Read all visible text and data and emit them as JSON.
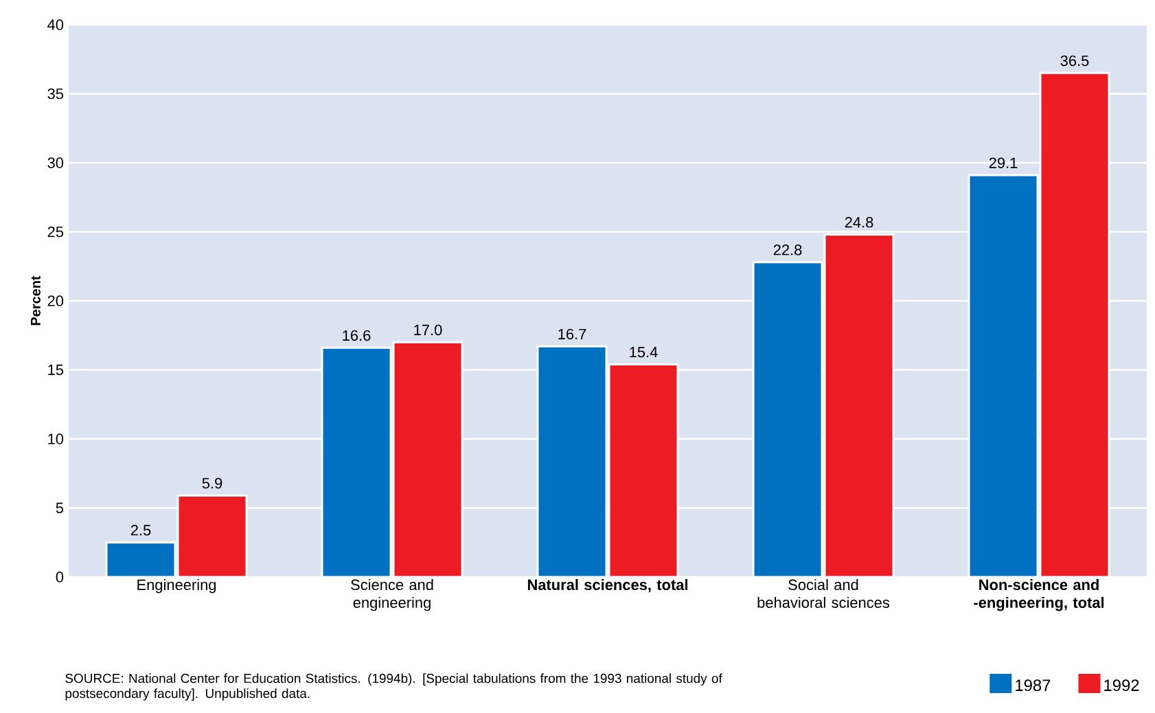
{
  "chart_data": {
    "type": "bar",
    "ylabel": "Percent",
    "categories": [
      "Engineering",
      "Science and engineering",
      "**Natural sciences, total**",
      "Social and behavioral sciences",
      "**Non-science and -engineering, total**"
    ],
    "series": [
      {
        "name": "1987",
        "color": "#0070c0",
        "values": [
          2.5,
          16.6,
          16.7,
          22.8,
          29.1
        ],
        "value_labels": [
          "2.5",
          "16.6",
          "16.7",
          "22.8",
          "29.1"
        ]
      },
      {
        "name": "1992",
        "color": "#ed1c24",
        "values": [
          5.9,
          17.0,
          15.4,
          24.8,
          36.5
        ],
        "value_labels": [
          "5.9",
          "17.0",
          "15.4",
          "24.8",
          "36.5"
        ]
      }
    ],
    "ylim": [
      0,
      40
    ],
    "yticks": [
      0,
      5,
      10,
      15,
      20,
      25,
      30,
      35,
      40
    ],
    "grid": "y",
    "legend": "bottom right",
    "annotations": [
      "SOURCE: National Center for Education Statistics. (1994b). [Special tabulations from the 1993 national study of postsecondary faculty]. Unpublished data."
    ]
  }
}
